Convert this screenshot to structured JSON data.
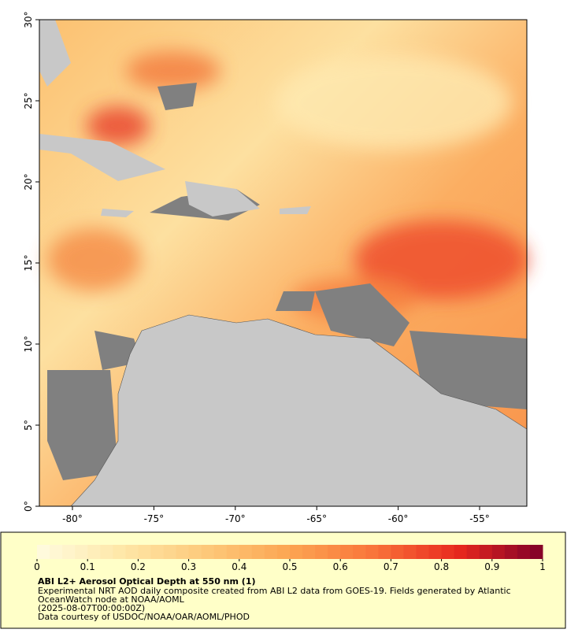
{
  "map": {
    "xlim": [
      -82.03,
      -52.1
    ],
    "ylim": [
      0,
      30
    ],
    "xticks": [
      {
        "value": -80,
        "label": "-80°"
      },
      {
        "value": -75,
        "label": "-75°"
      },
      {
        "value": -70,
        "label": "-70°"
      },
      {
        "value": -65,
        "label": "-65°"
      },
      {
        "value": -60,
        "label": "-60°"
      },
      {
        "value": -55,
        "label": "-55°"
      }
    ],
    "yticks": [
      {
        "value": 0,
        "label": "0°"
      },
      {
        "value": 5,
        "label": "5°"
      },
      {
        "value": 10,
        "label": "10°"
      },
      {
        "value": 15,
        "label": "15°"
      },
      {
        "value": 20,
        "label": "20°"
      },
      {
        "value": 25,
        "label": "25°"
      },
      {
        "value": 30,
        "label": "30°"
      }
    ]
  },
  "colorbar": {
    "range": [
      0,
      1
    ],
    "ticks": [
      0,
      0.1,
      0.2,
      0.3,
      0.4,
      0.5,
      0.6,
      0.7,
      0.8,
      0.9,
      1
    ],
    "colors": [
      "#fffbe0",
      "#fee7a8",
      "#fdc97a",
      "#fca552",
      "#f9743a",
      "#e8281e",
      "#7f0029"
    ]
  },
  "caption": {
    "title": "ABI L2+ Aerosol Optical Depth at 550 nm (1)",
    "lines": [
      "Experimental NRT AOD daily composite created from ABI L2 data from GOES-19. Fields generated by Atlantic",
      "OceanWatch node at NOAA/AOML",
      "(2025-08-07T00:00:00Z)",
      "Data courtesy of USDOC/NOAA/OAR/AOML/PHOD"
    ]
  }
}
